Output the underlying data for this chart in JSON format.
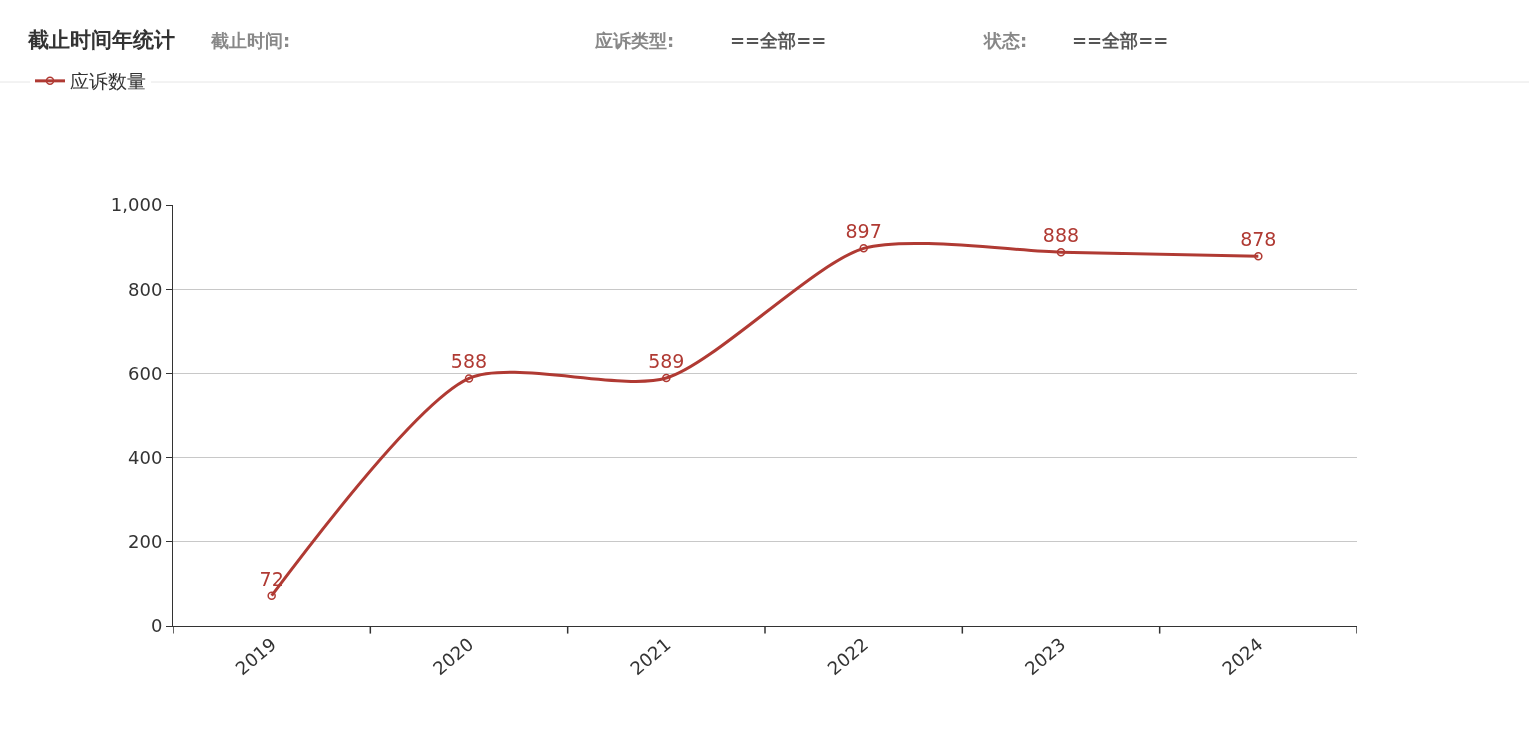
{
  "chart_data": {
    "type": "line",
    "title": "截止时间年统计",
    "annotations": [
      "截止时间:",
      "应诉类型:",
      "==全部==",
      "状态:",
      "==全部=="
    ],
    "categories": [
      "2019",
      "2020",
      "2021",
      "2022",
      "2023",
      "2024"
    ],
    "series": [
      {
        "name": "应诉数量",
        "color": "#b03a33",
        "values": [
          72,
          588,
          589,
          897,
          888,
          878
        ]
      }
    ],
    "ylim": [
      0,
      1000
    ],
    "yticks": [
      0,
      200,
      400,
      600,
      800,
      {
        "value": 1000,
        "label": "1,000"
      }
    ],
    "grid": "y",
    "legend": "top left",
    "marker": "circle",
    "line_style": "solid",
    "data_labels": true
  }
}
